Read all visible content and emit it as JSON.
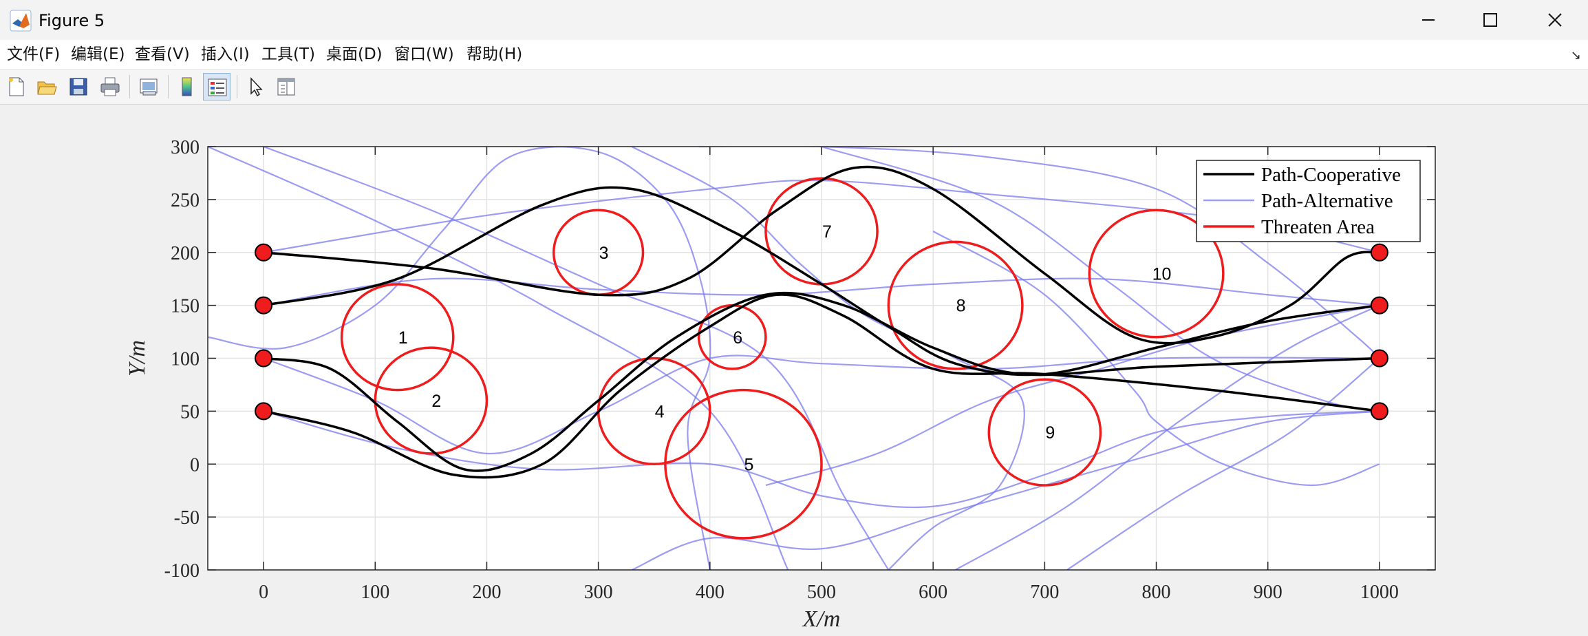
{
  "window": {
    "title": "Figure 5"
  },
  "menu": [
    {
      "label": "文件(F)"
    },
    {
      "label": "编辑(E)"
    },
    {
      "label": "查看(V)"
    },
    {
      "label": "插入(I)"
    },
    {
      "label": "工具(T)"
    },
    {
      "label": "桌面(D)"
    },
    {
      "label": "窗口(W)"
    },
    {
      "label": "帮助(H)"
    }
  ],
  "toolbar": {
    "buttons": [
      "new-figure-icon",
      "open-file-icon",
      "save-icon",
      "print-icon",
      "link-plot-icon",
      "insert-colorbar-icon",
      "insert-legend-icon",
      "edit-plot-arrow-icon",
      "property-inspector-icon"
    ]
  },
  "colors": {
    "cooperative": "#000000",
    "alternative": "#7b7bef",
    "threat": "#ee1c1c",
    "node": "#ee1c1c"
  },
  "chart_data": {
    "type": "line",
    "xlabel": "X/m",
    "ylabel": "Y/m",
    "xlim": [
      -50,
      1050
    ],
    "ylim": [
      -100,
      300
    ],
    "x_ticks": [
      "0",
      "100",
      "200",
      "300",
      "400",
      "500",
      "600",
      "700",
      "800",
      "900",
      "1000"
    ],
    "y_ticks": [
      "300",
      "250",
      "200",
      "150",
      "100",
      "50",
      "0",
      "-50",
      "-100"
    ],
    "grid": true,
    "legend_position": "top-right",
    "legend": [
      {
        "label": "Path-Cooperative"
      },
      {
        "label": "Path-Alternative"
      },
      {
        "label": "Threaten Area"
      }
    ],
    "threat_areas": [
      {
        "id": "1",
        "x": 120,
        "y": 120,
        "r": 50
      },
      {
        "id": "2",
        "x": 150,
        "y": 60,
        "r": 50
      },
      {
        "id": "3",
        "x": 300,
        "y": 200,
        "r": 40
      },
      {
        "id": "4",
        "x": 350,
        "y": 50,
        "r": 50
      },
      {
        "id": "5",
        "x": 430,
        "y": 0,
        "r": 70
      },
      {
        "id": "6",
        "x": 420,
        "y": 120,
        "r": 30
      },
      {
        "id": "7",
        "x": 500,
        "y": 220,
        "r": 50
      },
      {
        "id": "8",
        "x": 620,
        "y": 150,
        "r": 60
      },
      {
        "id": "9",
        "x": 700,
        "y": 30,
        "r": 50
      },
      {
        "id": "10",
        "x": 800,
        "y": 180,
        "r": 60
      }
    ],
    "start_points": [
      [
        0,
        200
      ],
      [
        0,
        150
      ],
      [
        0,
        100
      ],
      [
        0,
        50
      ]
    ],
    "end_points": [
      [
        1000,
        200
      ],
      [
        1000,
        150
      ],
      [
        1000,
        100
      ],
      [
        1000,
        50
      ]
    ],
    "cooperative_paths": [
      [
        [
          0,
          200
        ],
        [
          150,
          185
        ],
        [
          300,
          160
        ],
        [
          380,
          175
        ],
        [
          460,
          240
        ],
        [
          530,
          280
        ],
        [
          600,
          260
        ],
        [
          700,
          180
        ],
        [
          780,
          120
        ],
        [
          850,
          120
        ],
        [
          920,
          150
        ],
        [
          970,
          195
        ],
        [
          1000,
          200
        ]
      ],
      [
        [
          0,
          150
        ],
        [
          120,
          175
        ],
        [
          250,
          245
        ],
        [
          330,
          260
        ],
        [
          420,
          220
        ],
        [
          500,
          170
        ],
        [
          560,
          130
        ],
        [
          620,
          95
        ],
        [
          700,
          85
        ],
        [
          800,
          110
        ],
        [
          900,
          135
        ],
        [
          1000,
          150
        ]
      ],
      [
        [
          0,
          100
        ],
        [
          60,
          90
        ],
        [
          120,
          40
        ],
        [
          180,
          -5
        ],
        [
          240,
          10
        ],
        [
          300,
          60
        ],
        [
          370,
          120
        ],
        [
          450,
          160
        ],
        [
          520,
          150
        ],
        [
          600,
          110
        ],
        [
          680,
          85
        ],
        [
          800,
          92
        ],
        [
          1000,
          100
        ]
      ],
      [
        [
          0,
          50
        ],
        [
          80,
          30
        ],
        [
          170,
          -10
        ],
        [
          250,
          0
        ],
        [
          320,
          70
        ],
        [
          400,
          130
        ],
        [
          460,
          160
        ],
        [
          520,
          140
        ],
        [
          600,
          90
        ],
        [
          700,
          85
        ],
        [
          850,
          70
        ],
        [
          1000,
          50
        ]
      ]
    ],
    "alternative_paths": [
      [
        [
          0,
          200
        ],
        [
          200,
          235
        ],
        [
          400,
          260
        ],
        [
          500,
          268
        ],
        [
          650,
          255
        ],
        [
          800,
          240
        ],
        [
          900,
          225
        ],
        [
          1000,
          200
        ]
      ],
      [
        [
          0,
          150
        ],
        [
          150,
          175
        ],
        [
          300,
          165
        ],
        [
          450,
          160
        ],
        [
          600,
          170
        ],
        [
          750,
          175
        ],
        [
          900,
          160
        ],
        [
          1000,
          150
        ]
      ],
      [
        [
          0,
          50
        ],
        [
          120,
          15
        ],
        [
          250,
          -5
        ],
        [
          400,
          0
        ],
        [
          500,
          -30
        ],
        [
          600,
          -40
        ],
        [
          700,
          -10
        ],
        [
          800,
          30
        ],
        [
          900,
          45
        ],
        [
          1000,
          50
        ]
      ],
      [
        [
          0,
          100
        ],
        [
          100,
          60
        ],
        [
          200,
          10
        ],
        [
          300,
          50
        ],
        [
          400,
          100
        ],
        [
          500,
          95
        ],
        [
          650,
          90
        ],
        [
          800,
          100
        ],
        [
          1000,
          100
        ]
      ],
      [
        [
          -50,
          300
        ],
        [
          100,
          230
        ],
        [
          250,
          150
        ],
        [
          400,
          50
        ],
        [
          470,
          -100
        ]
      ],
      [
        [
          0,
          300
        ],
        [
          150,
          240
        ],
        [
          300,
          170
        ],
        [
          450,
          100
        ],
        [
          520,
          -30
        ],
        [
          560,
          -100
        ]
      ],
      [
        [
          -50,
          120
        ],
        [
          20,
          110
        ],
        [
          100,
          150
        ],
        [
          160,
          220
        ],
        [
          220,
          290
        ],
        [
          300,
          295
        ],
        [
          360,
          250
        ],
        [
          390,
          180
        ],
        [
          400,
          100
        ],
        [
          380,
          30
        ],
        [
          400,
          -100
        ]
      ],
      [
        [
          330,
          300
        ],
        [
          420,
          250
        ],
        [
          480,
          190
        ],
        [
          540,
          140
        ],
        [
          620,
          100
        ],
        [
          680,
          60
        ],
        [
          660,
          -20
        ],
        [
          600,
          -60
        ],
        [
          560,
          -100
        ]
      ],
      [
        [
          390,
          300
        ],
        [
          500,
          300
        ],
        [
          650,
          290
        ],
        [
          800,
          260
        ],
        [
          900,
          190
        ],
        [
          980,
          120
        ],
        [
          1000,
          100
        ]
      ],
      [
        [
          500,
          300
        ],
        [
          650,
          250
        ],
        [
          760,
          170
        ],
        [
          850,
          100
        ],
        [
          950,
          60
        ],
        [
          1000,
          50
        ]
      ],
      [
        [
          620,
          -100
        ],
        [
          720,
          -40
        ],
        [
          820,
          40
        ],
        [
          920,
          110
        ],
        [
          1000,
          150
        ]
      ],
      [
        [
          720,
          -100
        ],
        [
          820,
          -30
        ],
        [
          920,
          30
        ],
        [
          1000,
          100
        ]
      ],
      [
        [
          330,
          -100
        ],
        [
          400,
          -70
        ],
        [
          500,
          -80
        ],
        [
          600,
          -50
        ],
        [
          700,
          -20
        ],
        [
          800,
          10
        ],
        [
          900,
          40
        ],
        [
          1000,
          50
        ]
      ],
      [
        [
          600,
          220
        ],
        [
          700,
          160
        ],
        [
          780,
          70
        ],
        [
          800,
          40
        ],
        [
          860,
          0
        ],
        [
          940,
          -20
        ],
        [
          1000,
          0
        ]
      ],
      [
        [
          450,
          -20
        ],
        [
          550,
          10
        ],
        [
          650,
          60
        ],
        [
          750,
          90
        ],
        [
          850,
          120
        ],
        [
          1000,
          150
        ]
      ]
    ]
  }
}
